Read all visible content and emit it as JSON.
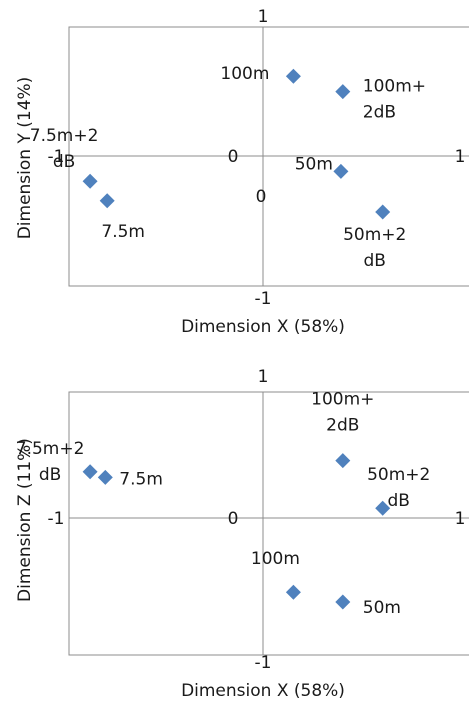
{
  "chart_data": [
    {
      "type": "scatter",
      "xlabel": "Dimension X (58%)",
      "ylabel": "Dimension Y (14%)",
      "xlim": [
        -1,
        1
      ],
      "ylim": [
        -1,
        1
      ],
      "grid": false,
      "marker_color": "#4f81bd",
      "axis_ticks": {
        "x_min": "-1",
        "x_max": "1",
        "y_min": "-1",
        "y_max": "1",
        "origin_labels": [
          "0",
          "0"
        ]
      },
      "points": [
        {
          "x": 0.16,
          "y": 0.57,
          "label_lines": [
            "100m"
          ]
        },
        {
          "x": 0.42,
          "y": 0.46,
          "label_lines": [
            "100m+",
            "2dB"
          ]
        },
        {
          "x": 0.41,
          "y": -0.11,
          "label_lines": [
            "50m"
          ]
        },
        {
          "x": 0.63,
          "y": -0.4,
          "label_lines": [
            "50m+2",
            "dB"
          ]
        },
        {
          "x": -0.91,
          "y": -0.18,
          "label_lines": [
            "7.5m+2",
            "dB"
          ]
        },
        {
          "x": -0.82,
          "y": -0.32,
          "label_lines": [
            "7.5m"
          ]
        }
      ]
    },
    {
      "type": "scatter",
      "xlabel": "Dimension X (58%)",
      "ylabel": "Dimension Z (11%)",
      "xlim": [
        -1,
        1
      ],
      "ylim": [
        -1,
        1
      ],
      "grid": false,
      "marker_color": "#4f81bd",
      "axis_ticks": {
        "x_min": "-1",
        "x_max": "1",
        "y_min": "-1",
        "y_max": "1",
        "origin_labels": [
          "0"
        ]
      },
      "points": [
        {
          "x": 0.42,
          "y": 0.41,
          "label_lines": [
            "100m+",
            "2dB"
          ]
        },
        {
          "x": 0.63,
          "y": 0.07,
          "label_lines": [
            "50m+2",
            "dB"
          ]
        },
        {
          "x": -0.91,
          "y": 0.33,
          "label_lines": [
            "7.5m+2",
            "dB"
          ]
        },
        {
          "x": -0.83,
          "y": 0.29,
          "label_lines": [
            "7.5m"
          ]
        },
        {
          "x": 0.16,
          "y": -0.53,
          "label_lines": [
            "100m"
          ]
        },
        {
          "x": 0.42,
          "y": -0.6,
          "label_lines": [
            "50m"
          ]
        }
      ]
    }
  ]
}
